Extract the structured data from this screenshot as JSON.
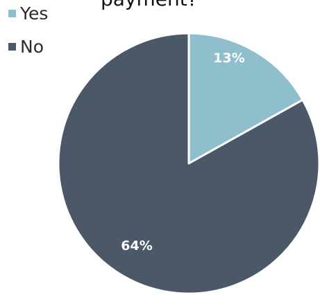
{
  "chart_data": {
    "type": "pie",
    "title": "payment?",
    "legend_position": "top-left",
    "categories": [
      "Yes",
      "No"
    ],
    "values": [
      13,
      64
    ],
    "value_labels": [
      "13%",
      "64%"
    ],
    "colors": [
      "#8fbfcc",
      "#4b5868"
    ]
  }
}
